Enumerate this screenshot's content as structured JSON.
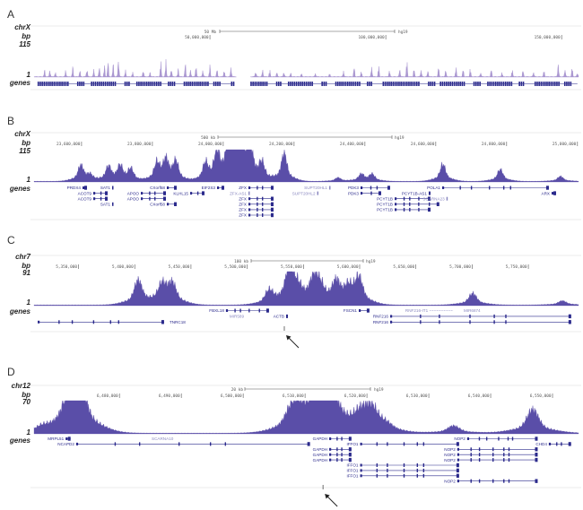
{
  "colors": {
    "signal_A": "#9c86c9",
    "signal": "#5a4ea8",
    "gene": "#2b2a8c",
    "noncoding": "#8a88c0",
    "frame": "#e4e4e4",
    "arrow": "#222222"
  },
  "chart_data": [
    {
      "type": "area",
      "letter": "A",
      "chrom": "chrX",
      "bp_label": "bp",
      "ymax_label": "115",
      "ymin_label": "1",
      "genes_label": "genes",
      "scale_label": "50 Mb",
      "assembly": "hg19",
      "ylim": [
        1,
        115
      ],
      "view_range": [
        0,
        154800000
      ],
      "ticks": [
        "50,000,000",
        "100,000,000",
        "150,000,000"
      ],
      "gaps": [
        [
          57500000,
          61500000
        ]
      ],
      "peak_width": 150000,
      "peaks": [
        [
          3000000,
          30
        ],
        [
          4500000,
          40
        ],
        [
          6000000,
          25
        ],
        [
          9000000,
          35
        ],
        [
          11000000,
          45
        ],
        [
          13000000,
          30
        ],
        [
          15000000,
          55
        ],
        [
          17000000,
          40
        ],
        [
          18500000,
          65
        ],
        [
          20000000,
          50
        ],
        [
          21000000,
          75
        ],
        [
          22500000,
          60
        ],
        [
          24000000,
          115
        ],
        [
          26000000,
          30
        ],
        [
          28000000,
          20
        ],
        [
          31000000,
          45
        ],
        [
          33000000,
          25
        ],
        [
          36000000,
          70
        ],
        [
          37500000,
          80
        ],
        [
          39000000,
          55
        ],
        [
          41000000,
          45
        ],
        [
          43000000,
          60
        ],
        [
          44500000,
          40
        ],
        [
          46000000,
          70
        ],
        [
          48000000,
          40
        ],
        [
          50000000,
          55
        ],
        [
          52000000,
          35
        ],
        [
          54000000,
          40
        ],
        [
          56000000,
          60
        ],
        [
          63000000,
          40
        ],
        [
          65000000,
          35
        ],
        [
          67000000,
          30
        ],
        [
          69000000,
          25
        ],
        [
          71000000,
          35
        ],
        [
          73000000,
          20
        ],
        [
          76000000,
          15
        ],
        [
          80000000,
          20
        ],
        [
          84000000,
          15
        ],
        [
          88000000,
          35
        ],
        [
          91000000,
          45
        ],
        [
          93000000,
          30
        ],
        [
          96000000,
          60
        ],
        [
          98000000,
          50
        ],
        [
          101000000,
          35
        ],
        [
          104000000,
          45
        ],
        [
          106000000,
          75
        ],
        [
          108000000,
          40
        ],
        [
          110000000,
          50
        ],
        [
          112000000,
          35
        ],
        [
          115000000,
          45
        ],
        [
          117000000,
          40
        ],
        [
          120000000,
          55
        ],
        [
          122000000,
          35
        ],
        [
          124000000,
          40
        ],
        [
          127000000,
          30
        ],
        [
          130000000,
          35
        ],
        [
          133000000,
          25
        ],
        [
          136000000,
          40
        ],
        [
          139000000,
          30
        ],
        [
          142000000,
          35
        ],
        [
          145000000,
          30
        ],
        [
          149000000,
          80
        ],
        [
          151000000,
          50
        ],
        [
          153000000,
          45
        ],
        [
          154500000,
          30
        ]
      ],
      "gene_coverage": [
        [
          1000000,
          57000000
        ],
        [
          61500000,
          154500000
        ]
      ],
      "genes": []
    },
    {
      "type": "area",
      "letter": "B",
      "chrom": "chrX",
      "bp_label": "bp",
      "ymax_label": "115",
      "ymin_label": "1",
      "genes_label": "genes",
      "scale_label": "500 kb",
      "assembly": "hg19",
      "ylim": [
        1,
        115
      ],
      "view_range": [
        23466000,
        25003000
      ],
      "ticks": [
        "23,600,000",
        "23,800,000",
        "24,000,000",
        "24,200,000",
        "24,400,000",
        "24,600,000",
        "24,800,000",
        "25,000,000"
      ],
      "gaps": [],
      "peak_width": 4000,
      "peaks": [
        [
          23598000,
          50
        ],
        [
          23623000,
          18
        ],
        [
          23676000,
          45
        ],
        [
          23709000,
          45
        ],
        [
          23739000,
          38
        ],
        [
          23813000,
          55
        ],
        [
          23838000,
          62
        ],
        [
          23866000,
          60
        ],
        [
          23950000,
          55
        ],
        [
          23982000,
          85
        ],
        [
          24015000,
          105
        ],
        [
          24033000,
          100
        ],
        [
          24053000,
          112
        ],
        [
          24076000,
          95
        ],
        [
          24109000,
          55
        ],
        [
          24172000,
          90
        ],
        [
          24324000,
          12
        ],
        [
          24390000,
          22
        ],
        [
          24420000,
          22
        ],
        [
          24620000,
          55
        ],
        [
          24782000,
          38
        ],
        [
          24952000,
          16
        ]
      ],
      "genes": [
        {
          "name": "PRDX4",
          "row": 0,
          "start": 23602700,
          "end": 23615400,
          "type": "coding",
          "side": "left"
        },
        {
          "name": "SAT1",
          "row": 0,
          "start": 23686300,
          "end": 23688000,
          "type": "coding",
          "side": "left"
        },
        {
          "name": "CXorf58",
          "row": 0,
          "start": 23840700,
          "end": 23868600,
          "type": "coding",
          "side": "left"
        },
        {
          "name": "EIF2S3",
          "row": 0,
          "start": 23982500,
          "end": 24002800,
          "type": "coding",
          "side": "left"
        },
        {
          "name": "ZFX",
          "row": 0,
          "start": 24071100,
          "end": 24142000,
          "type": "coding",
          "side": "left"
        },
        {
          "name": "SUPT20HL1",
          "row": 0,
          "start": 24299000,
          "end": 24301000,
          "type": "noncoding",
          "side": "left"
        },
        {
          "name": "PDK3",
          "row": 0,
          "start": 24387600,
          "end": 24471200,
          "type": "coding",
          "side": "left"
        },
        {
          "name": "POLA1",
          "row": 0,
          "start": 24618000,
          "end": 24919300,
          "type": "coding",
          "side": "left"
        },
        {
          "name": "ACOT9",
          "row": 1,
          "start": 23633100,
          "end": 23673600,
          "type": "coding",
          "side": "left"
        },
        {
          "name": "APOO",
          "row": 1,
          "start": 23767300,
          "end": 23838200,
          "type": "coding",
          "side": "left"
        },
        {
          "name": "KLHL15",
          "row": 1,
          "start": 23906600,
          "end": 23947100,
          "type": "coding",
          "side": "left"
        },
        {
          "name": "ZFX-AS1",
          "row": 1,
          "start": 24071100,
          "end": 24071100,
          "type": "noncoding",
          "side": "left"
        },
        {
          "name": "SUPT20HL2",
          "row": 1,
          "start": 24265000,
          "end": 24267000,
          "type": "noncoding",
          "side": "left"
        },
        {
          "name": "PDK3",
          "row": 1,
          "start": 24387600,
          "end": 24445900,
          "type": "coding",
          "side": "left"
        },
        {
          "name": "PCYT1B-AS1",
          "row": 1,
          "start": 24580000,
          "end": 24585200,
          "type": "coding",
          "side": "left"
        },
        {
          "name": "ARX",
          "row": 1,
          "start": 24927000,
          "end": 24939700,
          "type": "coding",
          "side": "left"
        },
        {
          "name": "ACOT9",
          "row": 2,
          "start": 23633100,
          "end": 23673600,
          "type": "coding",
          "side": "left"
        },
        {
          "name": "APOO",
          "row": 2,
          "start": 23767300,
          "end": 23838200,
          "type": "coding",
          "side": "left"
        },
        {
          "name": "ZFX",
          "row": 2,
          "start": 24071100,
          "end": 24142000,
          "type": "coding",
          "side": "left"
        },
        {
          "name": "PCYT1B",
          "row": 2,
          "start": 24483900,
          "end": 24585200,
          "type": "coding",
          "side": "left"
        },
        {
          "name": "SCARNA23",
          "row": 2,
          "start": 24630000,
          "end": 24630000,
          "type": "noncoding",
          "side": "left"
        },
        {
          "name": "SAT1",
          "row": 3,
          "start": 23686300,
          "end": 23688000,
          "type": "coding",
          "side": "left"
        },
        {
          "name": "CXorf58",
          "row": 3,
          "start": 23840700,
          "end": 23868600,
          "type": "coding",
          "side": "left"
        },
        {
          "name": "ZFX",
          "row": 3,
          "start": 24071100,
          "end": 24142000,
          "type": "coding",
          "side": "left"
        },
        {
          "name": "PCYT1B",
          "row": 3,
          "start": 24483900,
          "end": 24610000,
          "type": "coding",
          "side": "left"
        },
        {
          "name": "ZFX",
          "row": 4,
          "start": 24071100,
          "end": 24142000,
          "type": "coding",
          "side": "left"
        },
        {
          "name": "PCYT1B",
          "row": 4,
          "start": 24483900,
          "end": 24585200,
          "type": "coding",
          "side": "left"
        },
        {
          "name": "ZFX",
          "row": 5,
          "start": 24071100,
          "end": 24142000,
          "type": "coding",
          "side": "left"
        }
      ]
    },
    {
      "type": "area",
      "letter": "C",
      "chrom": "chr7",
      "bp_label": "bp",
      "ymax_label": "91",
      "ymin_label": "1",
      "genes_label": "genes",
      "scale_label": "100 kb",
      "assembly": "hg19",
      "ylim": [
        1,
        91
      ],
      "view_range": [
        5310500,
        5794600
      ],
      "ticks": [
        "5,350,000",
        "5,400,000",
        "5,450,000",
        "5,500,000",
        "5,550,000",
        "5,600,000",
        "5,650,000",
        "5,700,000",
        "5,750,000"
      ],
      "gaps": [],
      "peak_width": 1800,
      "peaks": [
        [
          5403000,
          58
        ],
        [
          5424500,
          45
        ],
        [
          5433300,
          48
        ],
        [
          5519400,
          32
        ],
        [
          5537800,
          91
        ],
        [
          5545000,
          30
        ],
        [
          5559300,
          55
        ],
        [
          5565000,
          35
        ],
        [
          5579200,
          48
        ],
        [
          5590000,
          35
        ],
        [
          5599200,
          62
        ],
        [
          5700500,
          28
        ],
        [
          5780200,
          10
        ]
      ],
      "genes": [
        {
          "name": "FBXL18",
          "row": 0,
          "start": 5481100,
          "end": 5519400,
          "type": "coding",
          "side": "left"
        },
        {
          "name": "FSCN1",
          "row": 0,
          "start": 5599200,
          "end": 5608700,
          "type": "coding",
          "side": "left"
        },
        {
          "name": "RNF216-IT1",
          "row": 0,
          "start": 5640600,
          "end": 5683000,
          "type": "noncoding",
          "side": "label"
        },
        {
          "name": "MIR6874",
          "row": 0,
          "start": 5692500,
          "end": 5692500,
          "type": "noncoding",
          "side": "label"
        },
        {
          "name": "MIR589",
          "row": 1,
          "start": 5484300,
          "end": 5484300,
          "type": "noncoding",
          "side": "label"
        },
        {
          "name": "ACTB",
          "row": 1,
          "start": 5534600,
          "end": 5536200,
          "type": "coding",
          "side": "left"
        },
        {
          "name": "RNF216",
          "row": 1,
          "start": 5627100,
          "end": 5788100,
          "type": "coding",
          "side": "left"
        },
        {
          "name": "TNRC18",
          "row": 2,
          "start": 5313700,
          "end": 5426100,
          "type": "coding",
          "side": "right"
        },
        {
          "name": "RNF216",
          "row": 2,
          "start": 5627100,
          "end": 5788100,
          "type": "coding",
          "side": "left"
        }
      ],
      "arrow_at": 5533000
    },
    {
      "type": "area",
      "letter": "D",
      "chrom": "chr12",
      "bp_label": "bp",
      "ymax_label": "70",
      "ymin_label": "1",
      "genes_label": "genes",
      "scale_label": "20 kb",
      "assembly": "hg19",
      "ylim": [
        1,
        70
      ],
      "view_range": [
        6466200,
        6554200
      ],
      "ticks": [
        "6,480,000",
        "6,490,000",
        "6,500,000",
        "6,510,000",
        "6,520,000",
        "6,530,000",
        "6,540,000",
        "6,550,000"
      ],
      "gaps": [],
      "peak_width": 500,
      "peaks": [
        [
          6467400,
          8
        ],
        [
          6471600,
          38
        ],
        [
          6472700,
          42
        ],
        [
          6473700,
          70
        ],
        [
          6507800,
          35
        ],
        [
          6509200,
          28
        ],
        [
          6512000,
          58
        ],
        [
          6513200,
          70
        ],
        [
          6514200,
          55
        ],
        [
          6519000,
          28
        ],
        [
          6520800,
          42
        ],
        [
          6523000,
          12
        ],
        [
          6534000,
          14
        ],
        [
          6546800,
          45
        ]
      ],
      "genes": [
        {
          "name": "MRPL51",
          "row": 0,
          "start": 6471300,
          "end": 6472100,
          "type": "coding",
          "side": "left"
        },
        {
          "name": "SCARNA10",
          "row": 0,
          "start": 6485200,
          "end": 6485200,
          "type": "noncoding",
          "side": "label"
        },
        {
          "name": "GAPDH",
          "row": 0,
          "start": 6513900,
          "end": 6517500,
          "type": "coding",
          "side": "left"
        },
        {
          "name": "NOP2",
          "row": 0,
          "start": 6536200,
          "end": 6547600,
          "type": "coding",
          "side": "left"
        },
        {
          "name": "NCAPD2",
          "row": 1,
          "start": 6473000,
          "end": 6510800,
          "type": "coding",
          "side": "left"
        },
        {
          "name": "IFFO1",
          "row": 1,
          "start": 6518900,
          "end": 6534900,
          "type": "coding",
          "side": "left"
        },
        {
          "name": "CHD4",
          "row": 1,
          "start": 6549400,
          "end": 6553000,
          "type": "coding",
          "side": "left"
        },
        {
          "name": "GAPDH",
          "row": 2,
          "start": 6513900,
          "end": 6517500,
          "type": "coding",
          "side": "left"
        },
        {
          "name": "NOP2",
          "row": 2,
          "start": 6534600,
          "end": 6547600,
          "type": "coding",
          "side": "left"
        },
        {
          "name": "GAPDH",
          "row": 3,
          "start": 6513900,
          "end": 6517500,
          "type": "coding",
          "side": "left"
        },
        {
          "name": "NOP2",
          "row": 3,
          "start": 6534600,
          "end": 6547600,
          "type": "coding",
          "side": "left"
        },
        {
          "name": "GAPDH",
          "row": 4,
          "start": 6513900,
          "end": 6517500,
          "type": "coding",
          "side": "left"
        },
        {
          "name": "NOP2",
          "row": 4,
          "start": 6534600,
          "end": 6547600,
          "type": "coding",
          "side": "left"
        },
        {
          "name": "IFFO1",
          "row": 5,
          "start": 6518900,
          "end": 6534900,
          "type": "coding",
          "side": "left"
        },
        {
          "name": "IFFO1",
          "row": 6,
          "start": 6518900,
          "end": 6534900,
          "type": "coding",
          "side": "left"
        },
        {
          "name": "IFFO1",
          "row": 7,
          "start": 6518900,
          "end": 6534900,
          "type": "coding",
          "side": "left"
        },
        {
          "name": "NOP2",
          "row": 8,
          "start": 6534600,
          "end": 6547600,
          "type": "coding",
          "side": "left"
        }
      ],
      "arrow_at": 6512900
    }
  ]
}
